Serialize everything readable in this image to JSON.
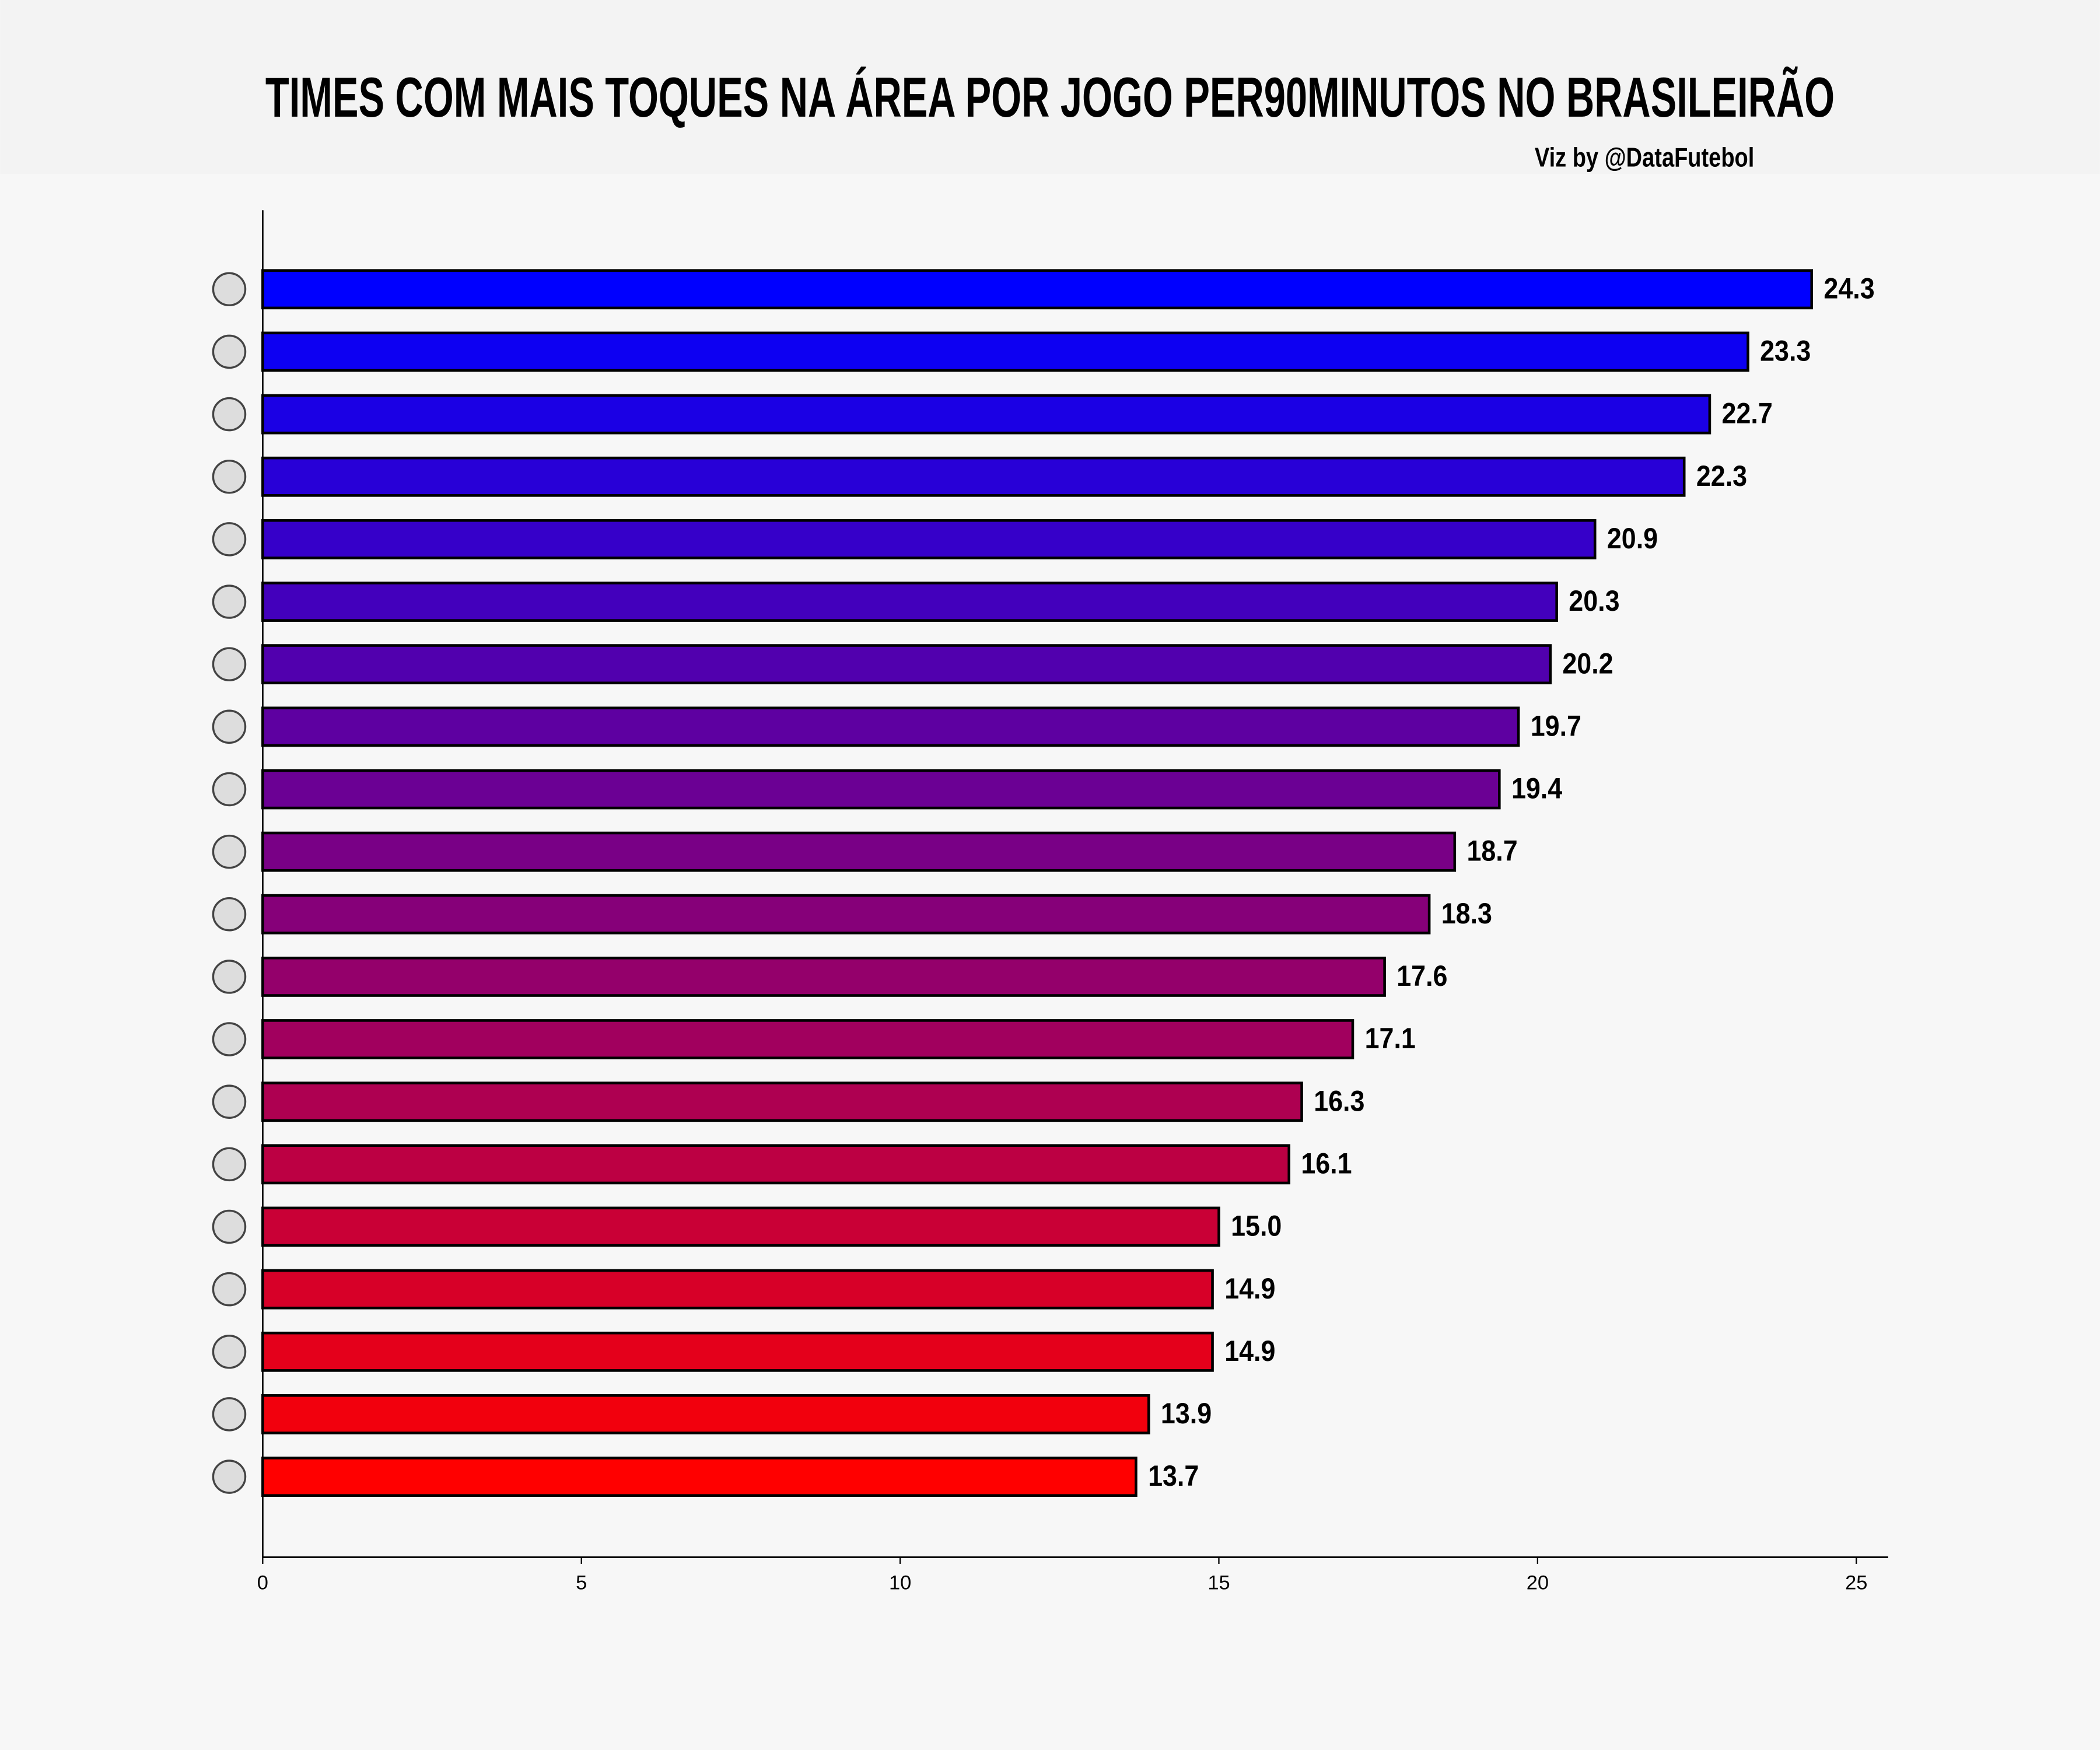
{
  "chart_data": {
    "type": "barh",
    "title": "TIMES COM MAIS TOQUES NA ÁREA POR JOGO PER90MINUTOS NO BRASILEIRÃO",
    "subtitle": "Viz by @DataFutebol",
    "categories": [
      null,
      null,
      null,
      null,
      null,
      null,
      null,
      null,
      null,
      null,
      null,
      null,
      null,
      null,
      null,
      null,
      null,
      null,
      null,
      null
    ],
    "values": [
      24.3,
      23.3,
      22.7,
      22.3,
      20.9,
      20.3,
      20.2,
      19.7,
      19.4,
      18.7,
      18.3,
      17.6,
      17.1,
      16.3,
      16.1,
      15.0,
      14.9,
      14.9,
      13.9,
      13.7
    ],
    "value_labels": [
      "24.3",
      "23.3",
      "22.7",
      "22.3",
      "20.9",
      "20.3",
      "20.2",
      "19.7",
      "19.4",
      "18.7",
      "18.3",
      "17.6",
      "17.1",
      "16.3",
      "16.1",
      "15.0",
      "14.9",
      "14.9",
      "13.9",
      "13.7"
    ],
    "colors": [
      "#0000ff",
      "#0d00f2",
      "#1b00e4",
      "#2800d7",
      "#3600c9",
      "#4300bc",
      "#5100ae",
      "#5e00a1",
      "#6b0094",
      "#790086",
      "#860079",
      "#94006b",
      "#a1005e",
      "#ae0051",
      "#bc0043",
      "#c90036",
      "#d70028",
      "#e4001b",
      "#f2000d",
      "#ff0000"
    ],
    "xlim": [
      0,
      25.5
    ],
    "xticks": [
      0,
      5,
      10,
      15,
      20,
      25
    ],
    "grid": false
  }
}
